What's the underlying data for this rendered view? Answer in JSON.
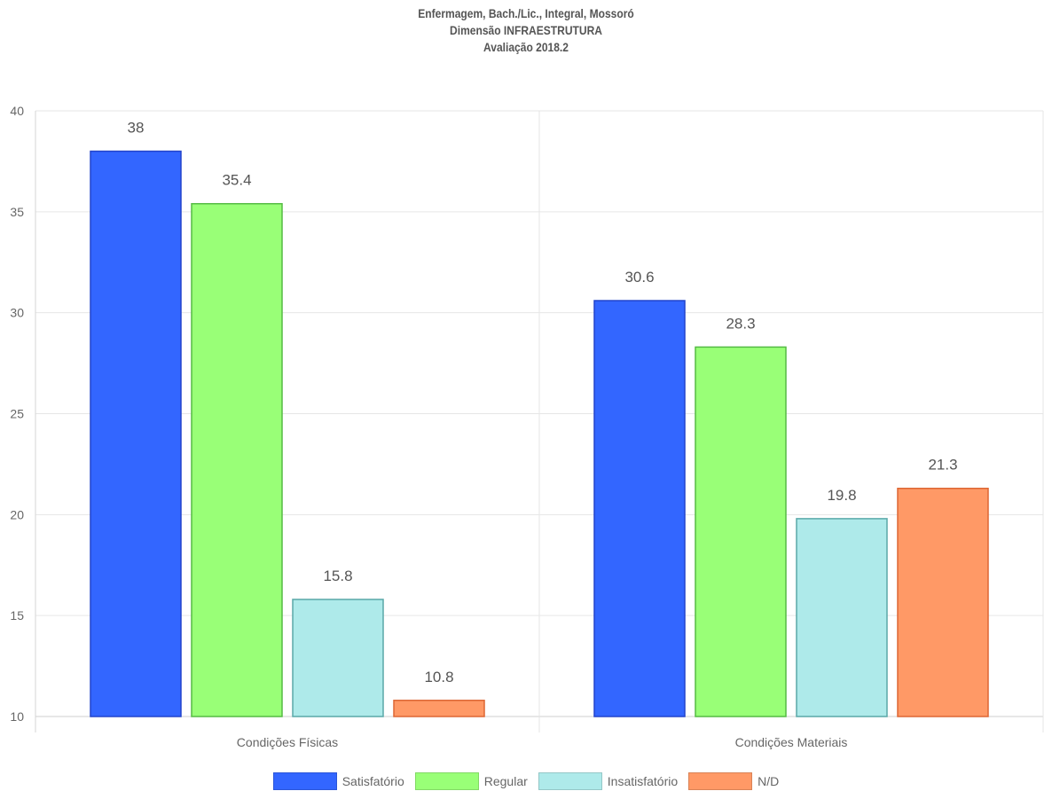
{
  "chart_data": {
    "type": "bar",
    "title_lines": [
      "Enfermagem, Bach./Lic., Integral, Mossoró",
      "Dimensão INFRAESTRUTURA",
      "Avaliação 2018.2"
    ],
    "categories": [
      "Condições Físicas",
      "Condições Materiais"
    ],
    "series": [
      {
        "name": "Satisfatório",
        "values": [
          38,
          30.6
        ],
        "color": "#3366ff",
        "border": "#2244cc"
      },
      {
        "name": "Regular",
        "values": [
          35.4,
          28.3
        ],
        "color": "#99ff77",
        "border": "#55bb44"
      },
      {
        "name": "Insatisfatório",
        "values": [
          15.8,
          19.8
        ],
        "color": "#aeeaea",
        "border": "#5aa8a8"
      },
      {
        "name": "N/D",
        "values": [
          10.8,
          21.3
        ],
        "color": "#ff9966",
        "border": "#dd6633"
      }
    ],
    "data_labels": [
      [
        "38",
        "30.6"
      ],
      [
        "35.4",
        "28.3"
      ],
      [
        "15.8",
        "19.8"
      ],
      [
        "10.8",
        "21.3"
      ]
    ],
    "y_ticks": [
      "10",
      "15",
      "20",
      "25",
      "30",
      "35",
      "40"
    ],
    "ylim": [
      10,
      40
    ],
    "grid": true,
    "legend_position": "bottom"
  }
}
